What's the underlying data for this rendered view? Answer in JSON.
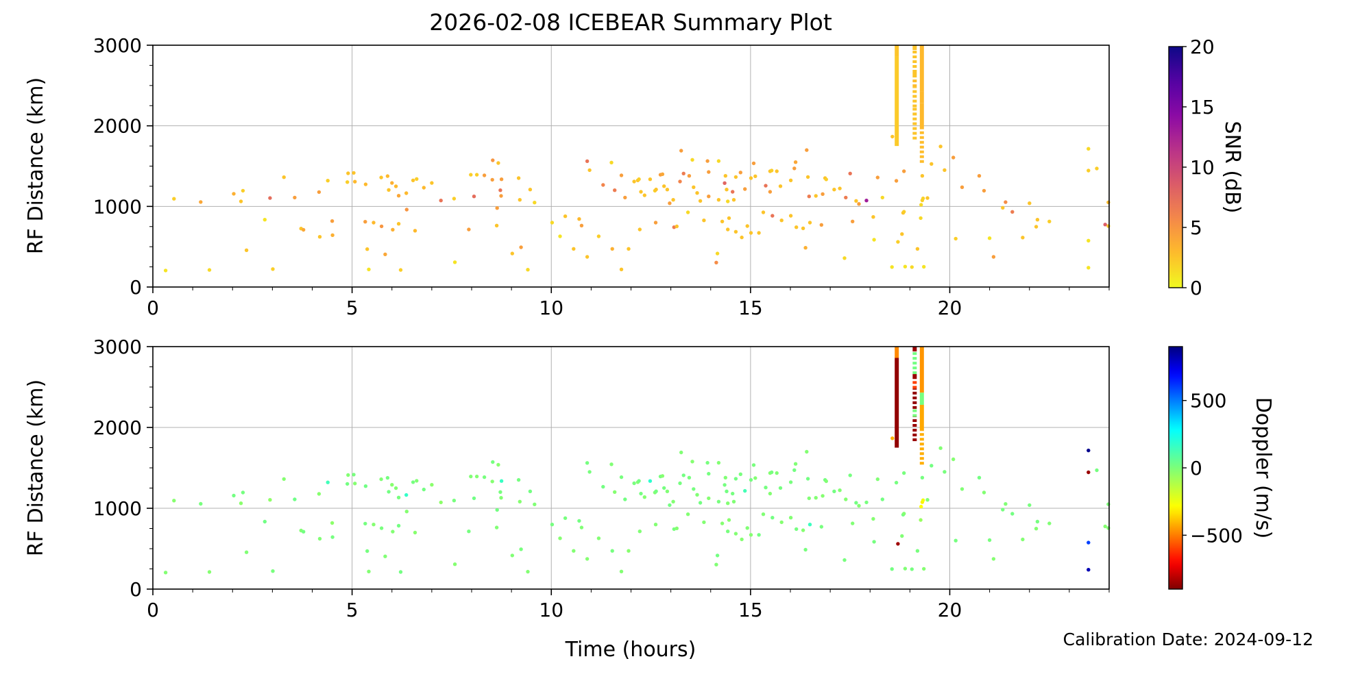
{
  "figure": {
    "title": "2026-02-08 ICEBEAR Summary Plot",
    "xlabel": "Time (hours)",
    "ylabel": "RF Distance (km)",
    "calibration_note": "Calibration Date: 2024-09-12"
  },
  "chart_data": {
    "type": "scatter",
    "title": "2026-02-08 ICEBEAR Summary Plot",
    "xlabel": "Time (hours)",
    "ylabel": "RF Distance (km)",
    "x_axis": {
      "range": [
        0,
        24
      ],
      "major_ticks": [
        0,
        5,
        10,
        15,
        20
      ],
      "minor_step_hours": 1
    },
    "y_axis": {
      "range": [
        0,
        3000
      ],
      "major_ticks": [
        0,
        1000,
        2000,
        3000
      ],
      "minor_step_km": 250
    },
    "grid": true,
    "panels": [
      {
        "id": "snr",
        "color_by": "snr_db",
        "colormap": "plasma_reversed"
      },
      {
        "id": "doppler",
        "color_by": "doppler_ms",
        "colormap": "jet_reversed"
      }
    ],
    "colorbars": {
      "snr": {
        "label": "SNR (dB)",
        "range": [
          0,
          20
        ],
        "ticks": [
          [
            20,
            "20"
          ],
          [
            15,
            "15"
          ],
          [
            10,
            "10"
          ],
          [
            5,
            "5"
          ],
          [
            0,
            "0"
          ]
        ]
      },
      "doppler": {
        "label": "Doppler (m/s)",
        "range": [
          -900,
          900
        ],
        "ticks": [
          [
            500,
            "500"
          ],
          [
            0,
            "0"
          ],
          [
            -500,
            "−500"
          ]
        ]
      }
    },
    "point_format": [
      "time_hours",
      "rf_distance_km",
      "snr_db",
      "doppler_ms"
    ],
    "points": [
      [
        0.32,
        205,
        1.0,
        -15
      ],
      [
        0.53,
        1095,
        2.0,
        -25
      ],
      [
        1.2,
        1055,
        4.0,
        10
      ],
      [
        1.42,
        212,
        1.5,
        -20
      ],
      [
        2.03,
        1157,
        3.5,
        20
      ],
      [
        2.21,
        1062,
        2.5,
        -30
      ],
      [
        2.26,
        1195,
        2.0,
        15
      ],
      [
        2.35,
        456,
        2.5,
        -10
      ],
      [
        2.81,
        835,
        1.0,
        25
      ],
      [
        2.94,
        1104,
        7.5,
        -40
      ],
      [
        3.01,
        223,
        2.0,
        10
      ],
      [
        3.29,
        1362,
        2.5,
        -20
      ],
      [
        3.56,
        1110,
        4.5,
        30
      ],
      [
        3.72,
        725,
        2.5,
        -15
      ],
      [
        3.78,
        710,
        4.0,
        20
      ],
      [
        4.17,
        1178,
        4.5,
        -25
      ],
      [
        4.39,
        1320,
        2.0,
        140
      ],
      [
        4.19,
        623,
        2.5,
        -10
      ],
      [
        4.51,
        643,
        3.5,
        15
      ],
      [
        4.5,
        818,
        4.5,
        -35
      ],
      [
        4.88,
        1302,
        2.0,
        20
      ],
      [
        4.9,
        1411,
        2.5,
        -15
      ],
      [
        5.04,
        1416,
        2.5,
        10
      ],
      [
        5.07,
        1307,
        3.0,
        -20
      ],
      [
        5.34,
        1274,
        3.0,
        25
      ],
      [
        5.73,
        1359,
        2.5,
        -10
      ],
      [
        5.89,
        1376,
        3.0,
        15
      ],
      [
        6.0,
        1291,
        3.5,
        -25
      ],
      [
        5.92,
        1204,
        2.5,
        20
      ],
      [
        6.1,
        1249,
        3.0,
        -15
      ],
      [
        6.17,
        1133,
        4.0,
        10
      ],
      [
        6.36,
        1164,
        3.0,
        170
      ],
      [
        6.37,
        960,
        5.0,
        -20
      ],
      [
        6.53,
        1323,
        2.5,
        15
      ],
      [
        6.62,
        1340,
        2.0,
        -10
      ],
      [
        6.8,
        1232,
        3.0,
        20
      ],
      [
        7.0,
        1291,
        2.5,
        -30
      ],
      [
        5.33,
        810,
        4.5,
        15
      ],
      [
        5.54,
        799,
        3.0,
        -20
      ],
      [
        5.74,
        753,
        5.0,
        10
      ],
      [
        6.02,
        711,
        3.5,
        -15
      ],
      [
        6.17,
        784,
        2.5,
        20
      ],
      [
        6.58,
        699,
        3.0,
        -25
      ],
      [
        5.38,
        470,
        2.5,
        15
      ],
      [
        5.83,
        405,
        4.0,
        -10
      ],
      [
        6.22,
        212,
        2.0,
        20
      ],
      [
        5.42,
        218,
        1.0,
        -15
      ],
      [
        7.23,
        1073,
        7.0,
        -35
      ],
      [
        7.56,
        1096,
        2.0,
        10
      ],
      [
        7.58,
        308,
        1.0,
        -20
      ],
      [
        7.93,
        714,
        4.5,
        15
      ],
      [
        7.98,
        1393,
        2.0,
        -10
      ],
      [
        8.06,
        1124,
        7.5,
        25
      ],
      [
        8.13,
        1393,
        2.0,
        -15
      ],
      [
        8.32,
        1385,
        4.5,
        10
      ],
      [
        8.52,
        1331,
        4.5,
        -20
      ],
      [
        8.53,
        1572,
        5.0,
        15
      ],
      [
        8.63,
        762,
        2.5,
        -10
      ],
      [
        8.64,
        980,
        4.5,
        20
      ],
      [
        8.67,
        1538,
        2.5,
        -25
      ],
      [
        8.72,
        1201,
        7.0,
        10
      ],
      [
        8.74,
        1130,
        4.5,
        -15
      ],
      [
        8.75,
        1337,
        4.5,
        160
      ],
      [
        9.02,
        416,
        2.5,
        -10
      ],
      [
        9.18,
        1351,
        2.5,
        15
      ],
      [
        9.21,
        1082,
        2.5,
        -20
      ],
      [
        9.24,
        493,
        4.5,
        10
      ],
      [
        9.41,
        215,
        1.5,
        -15
      ],
      [
        9.47,
        1209,
        2.5,
        20
      ],
      [
        9.58,
        1048,
        1.5,
        -10
      ],
      [
        10.02,
        799,
        1.5,
        15
      ],
      [
        10.22,
        629,
        1.0,
        -20
      ],
      [
        10.35,
        878,
        2.5,
        10
      ],
      [
        10.56,
        473,
        2.5,
        -15
      ],
      [
        10.7,
        844,
        3.0,
        20
      ],
      [
        10.76,
        762,
        4.5,
        -10
      ],
      [
        10.9,
        1561,
        7.0,
        15
      ],
      [
        10.9,
        374,
        2.5,
        -20
      ],
      [
        10.96,
        1450,
        2.5,
        10
      ],
      [
        11.19,
        629,
        2.0,
        -15
      ],
      [
        11.3,
        1266,
        6.0,
        20
      ],
      [
        11.51,
        1544,
        1.5,
        -10
      ],
      [
        11.53,
        473,
        3.5,
        15
      ],
      [
        11.59,
        1201,
        6.5,
        -20
      ],
      [
        11.76,
        1385,
        4.5,
        10
      ],
      [
        11.76,
        218,
        2.5,
        -15
      ],
      [
        11.85,
        1110,
        4.5,
        20
      ],
      [
        11.94,
        473,
        2.5,
        -25
      ],
      [
        12.08,
        1309,
        2.5,
        10
      ],
      [
        12.17,
        1323,
        2.5,
        -15
      ],
      [
        12.2,
        1338,
        2.0,
        20
      ],
      [
        12.22,
        714,
        2.5,
        -10
      ],
      [
        12.25,
        1181,
        2.5,
        15
      ],
      [
        12.34,
        1138,
        2.5,
        -20
      ],
      [
        12.48,
        1337,
        2.5,
        185
      ],
      [
        12.6,
        1195,
        2.0,
        -10
      ],
      [
        12.63,
        1210,
        2.5,
        15
      ],
      [
        12.62,
        799,
        4.5,
        -15
      ],
      [
        12.74,
        1393,
        4.5,
        10
      ],
      [
        12.79,
        1400,
        4.0,
        -20
      ],
      [
        12.83,
        1251,
        2.5,
        15
      ],
      [
        12.91,
        1209,
        2.5,
        -10
      ],
      [
        12.97,
        1039,
        4.5,
        20
      ],
      [
        13.06,
        1082,
        2.5,
        -15
      ],
      [
        13.08,
        742,
        6.5,
        10
      ],
      [
        13.15,
        752,
        2.5,
        -20
      ],
      [
        13.23,
        1309,
        6.0,
        15
      ],
      [
        13.26,
        1691,
        4.5,
        -10
      ],
      [
        13.32,
        1408,
        6.5,
        20
      ],
      [
        13.43,
        926,
        1.5,
        -15
      ],
      [
        13.46,
        1379,
        4.5,
        10
      ],
      [
        13.54,
        1578,
        1.5,
        -20
      ],
      [
        13.57,
        1238,
        2.5,
        15
      ],
      [
        13.66,
        1167,
        2.5,
        -10
      ],
      [
        13.74,
        1068,
        2.5,
        20
      ],
      [
        13.83,
        827,
        2.5,
        -15
      ],
      [
        13.92,
        1563,
        4.5,
        10
      ],
      [
        13.95,
        1124,
        4.5,
        -20
      ],
      [
        13.95,
        1427,
        4.5,
        15
      ],
      [
        14.14,
        303,
        5.5,
        -10
      ],
      [
        14.17,
        416,
        1.5,
        20
      ],
      [
        14.2,
        1563,
        1.5,
        -15
      ],
      [
        14.2,
        1082,
        2.5,
        10
      ],
      [
        14.29,
        813,
        2.5,
        -20
      ],
      [
        14.35,
        1289,
        8.0,
        15
      ],
      [
        14.37,
        1379,
        2.5,
        -10
      ],
      [
        14.4,
        1209,
        2.5,
        20
      ],
      [
        14.43,
        1062,
        1.5,
        -15
      ],
      [
        14.43,
        714,
        2.5,
        10
      ],
      [
        14.46,
        855,
        2.5,
        -25
      ],
      [
        14.55,
        1181,
        7.0,
        15
      ],
      [
        14.58,
        1082,
        2.5,
        -10
      ],
      [
        14.63,
        1365,
        2.5,
        20
      ],
      [
        14.63,
        686,
        2.5,
        -15
      ],
      [
        14.75,
        1421,
        4.5,
        10
      ],
      [
        14.78,
        615,
        2.5,
        -20
      ],
      [
        14.86,
        1215,
        4.5,
        130
      ],
      [
        14.92,
        756,
        2.5,
        -10
      ],
      [
        15.01,
        1351,
        2.5,
        15
      ],
      [
        15.01,
        671,
        2.5,
        -20
      ],
      [
        15.08,
        1535,
        4.5,
        10
      ],
      [
        15.12,
        1374,
        2.5,
        -15
      ],
      [
        15.21,
        671,
        2.5,
        20
      ],
      [
        15.32,
        926,
        2.5,
        -10
      ],
      [
        15.38,
        1257,
        7.0,
        15
      ],
      [
        15.49,
        1436,
        2.5,
        -20
      ],
      [
        15.53,
        1445,
        2.0,
        10
      ],
      [
        15.49,
        1181,
        4.5,
        -15
      ],
      [
        15.55,
        884,
        7.0,
        20
      ],
      [
        15.66,
        1436,
        2.5,
        -10
      ],
      [
        15.75,
        1251,
        2.5,
        15
      ],
      [
        15.78,
        827,
        2.5,
        -20
      ],
      [
        16.01,
        1323,
        2.5,
        10
      ],
      [
        16.01,
        884,
        2.5,
        -15
      ],
      [
        16.1,
        1472,
        4.5,
        20
      ],
      [
        16.13,
        1549,
        4.0,
        -10
      ],
      [
        16.15,
        742,
        2.5,
        15
      ],
      [
        16.32,
        728,
        2.5,
        -20
      ],
      [
        16.38,
        487,
        3.5,
        10
      ],
      [
        16.41,
        1699,
        4.5,
        -15
      ],
      [
        16.44,
        1365,
        2.5,
        20
      ],
      [
        16.47,
        1124,
        6.5,
        -10
      ],
      [
        16.49,
        799,
        2.5,
        150
      ],
      [
        16.64,
        1130,
        2.5,
        -15
      ],
      [
        16.78,
        771,
        4.5,
        10
      ],
      [
        16.81,
        1153,
        4.5,
        -20
      ],
      [
        16.87,
        1351,
        2.5,
        15
      ],
      [
        16.9,
        1335,
        2.0,
        -10
      ],
      [
        17.1,
        1209,
        2.5,
        20
      ],
      [
        17.24,
        1223,
        2.5,
        -15
      ],
      [
        17.36,
        359,
        1.5,
        10
      ],
      [
        17.39,
        1110,
        6.5,
        -20
      ],
      [
        17.5,
        1408,
        7.0,
        15
      ],
      [
        17.56,
        813,
        4.5,
        -10
      ],
      [
        17.65,
        1068,
        2.5,
        20
      ],
      [
        17.72,
        1031,
        4.5,
        -15
      ],
      [
        17.91,
        1073,
        13.0,
        10
      ],
      [
        18.08,
        869,
        2.5,
        -20
      ],
      [
        18.1,
        586,
        1.0,
        15
      ],
      [
        18.19,
        1359,
        4.5,
        -10
      ],
      [
        18.31,
        1110,
        1.5,
        20
      ],
      [
        18.56,
        1866,
        2.5,
        -420
      ],
      [
        18.66,
        1317,
        4.5,
        15
      ],
      [
        18.8,
        657,
        2.5,
        -10
      ],
      [
        18.83,
        920,
        2.5,
        20
      ],
      [
        18.85,
        934,
        2.0,
        -15
      ],
      [
        18.85,
        1436,
        4.5,
        10
      ],
      [
        18.55,
        248,
        1.0,
        20
      ],
      [
        18.88,
        253,
        1.0,
        -10
      ],
      [
        19.05,
        247,
        1.5,
        15
      ],
      [
        19.35,
        251,
        1.0,
        -20
      ],
      [
        19.19,
        473,
        2.5,
        10
      ],
      [
        19.27,
        855,
        1.5,
        -60
      ],
      [
        19.28,
        1020,
        1.5,
        -290
      ],
      [
        19.31,
        1075,
        2.0,
        -310
      ],
      [
        19.33,
        1100,
        1.8,
        -260
      ],
      [
        19.31,
        1379,
        2.5,
        15
      ],
      [
        19.44,
        1104,
        2.5,
        -10
      ],
      [
        19.54,
        1527,
        2.5,
        20
      ],
      [
        19.77,
        1744,
        2.5,
        -15
      ],
      [
        19.87,
        1451,
        2.5,
        10
      ],
      [
        20.09,
        1606,
        4.5,
        -20
      ],
      [
        20.15,
        600,
        2.0,
        15
      ],
      [
        20.31,
        1238,
        4.5,
        -10
      ],
      [
        20.74,
        1379,
        4.5,
        20
      ],
      [
        20.86,
        1195,
        4.5,
        -15
      ],
      [
        21.0,
        606,
        1.0,
        10
      ],
      [
        21.1,
        374,
        4.5,
        -20
      ],
      [
        21.33,
        983,
        2.5,
        15
      ],
      [
        21.4,
        1053,
        5.5,
        -10
      ],
      [
        21.57,
        932,
        6.5,
        20
      ],
      [
        21.83,
        614,
        2.5,
        -15
      ],
      [
        22.0,
        1039,
        2.5,
        10
      ],
      [
        22.17,
        748,
        2.5,
        -20
      ],
      [
        22.2,
        835,
        2.5,
        15
      ],
      [
        22.5,
        813,
        2.0,
        -10
      ],
      [
        18.7,
        560,
        2.0,
        -850
      ],
      [
        23.48,
        1715,
        1.5,
        880
      ],
      [
        23.48,
        1445,
        2.0,
        -860
      ],
      [
        23.69,
        1470,
        2.0,
        15
      ],
      [
        23.48,
        575,
        1.0,
        600
      ],
      [
        23.48,
        240,
        1.0,
        820
      ],
      [
        23.9,
        775,
        8.5,
        -20
      ],
      [
        23.98,
        1050,
        3.0,
        0
      ],
      [
        23.98,
        756,
        2.5,
        -10
      ]
    ],
    "streak_format": [
      "time_hours",
      "rf_km_start",
      "rf_km_end",
      "snr_db",
      "doppler_ms",
      "dotted"
    ],
    "streaks": [
      [
        18.67,
        2860,
        3000,
        2.5,
        -480,
        false
      ],
      [
        18.67,
        1750,
        2860,
        2.2,
        -870,
        false
      ],
      [
        19.12,
        2940,
        3000,
        2.5,
        -860,
        false
      ],
      [
        19.12,
        2660,
        2940,
        2.5,
        20,
        true
      ],
      [
        19.12,
        2600,
        2660,
        2.5,
        -860,
        false
      ],
      [
        19.12,
        2480,
        2600,
        2.8,
        -600,
        true
      ],
      [
        19.12,
        2230,
        2480,
        2.5,
        -870,
        true
      ],
      [
        19.12,
        2130,
        2230,
        2.5,
        10,
        true
      ],
      [
        19.12,
        1830,
        2130,
        2.5,
        -860,
        true
      ],
      [
        19.3,
        2430,
        3000,
        3.0,
        -460,
        false
      ],
      [
        19.3,
        2280,
        2430,
        3.0,
        15,
        false
      ],
      [
        19.3,
        1960,
        2280,
        3.0,
        -430,
        false
      ],
      [
        19.3,
        1540,
        1960,
        2.8,
        -420,
        true
      ]
    ]
  }
}
